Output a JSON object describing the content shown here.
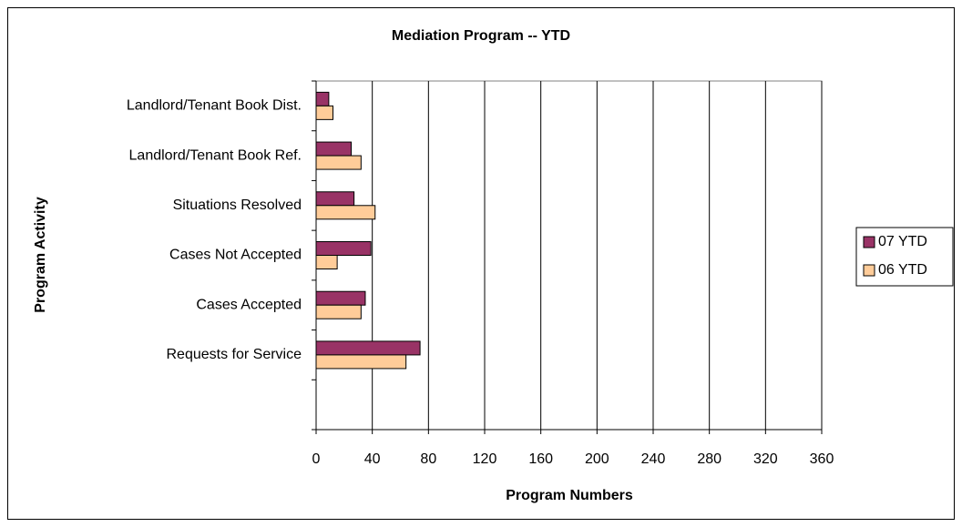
{
  "chart_data": {
    "type": "bar",
    "orientation": "horizontal",
    "title": "Mediation Program -- YTD",
    "x_label": "Program Numbers",
    "y_label": "Program Activity",
    "categories": [
      "Landlord/Tenant Book Dist.",
      "Landlord/Tenant Book Ref.",
      "Situations Resolved",
      "Cases Not Accepted",
      "Cases Accepted",
      "Requests for Service",
      null
    ],
    "series": [
      {
        "name": "07 YTD",
        "color": "#993366",
        "values": [
          9,
          25,
          27,
          39,
          35,
          74,
          null
        ]
      },
      {
        "name": "06 YTD",
        "color": "#ffcc99",
        "values": [
          12,
          32,
          42,
          15,
          32,
          64,
          null
        ]
      }
    ],
    "xlim": [
      0,
      360
    ],
    "xticks": [
      0,
      40,
      80,
      120,
      160,
      200,
      240,
      280,
      320,
      360
    ],
    "grid": true,
    "legend": "right"
  }
}
